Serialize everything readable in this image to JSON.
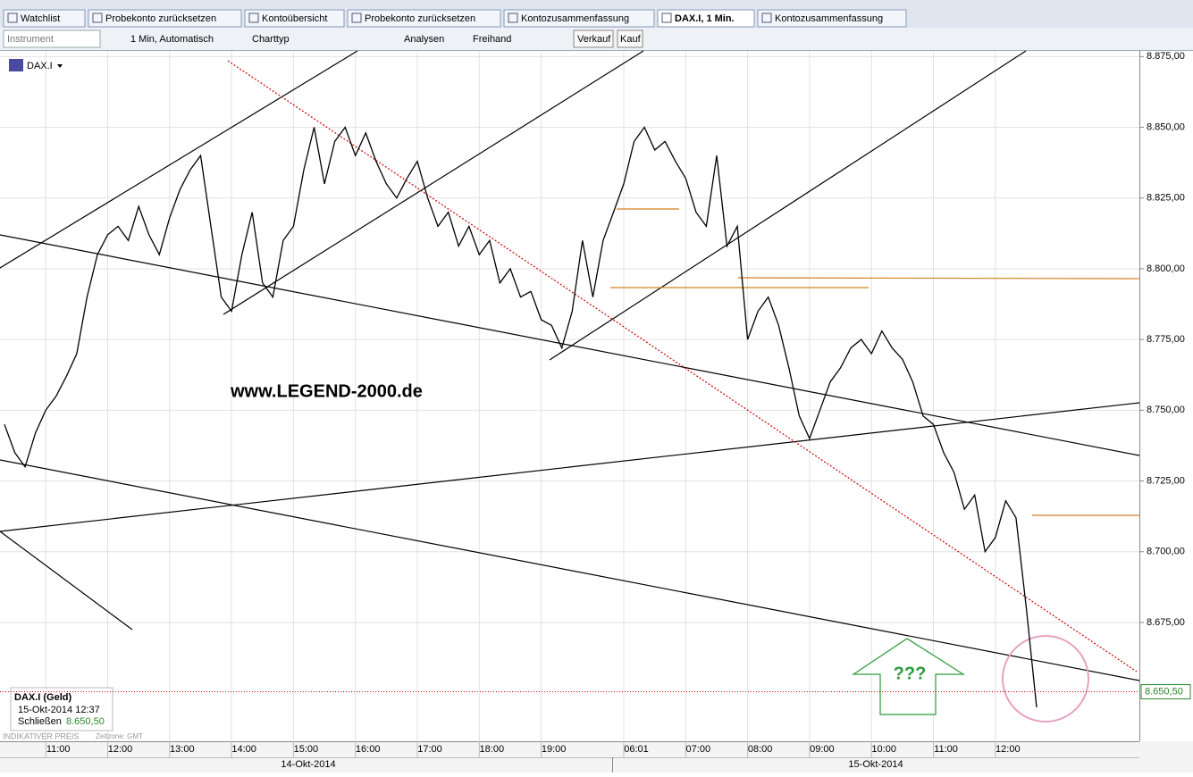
{
  "tabs": [
    "Watchlist",
    "Probekonto zurücksetzen",
    "Kontoübersicht",
    "Probekonto zurücksetzen",
    "Kontozusammenfassung",
    "DAX.I, 1 Min.",
    "Kontozusammenfassung"
  ],
  "toolbar": {
    "instrument": "Instrument",
    "interval": "1 Min, Automatisch",
    "charttype": "Charttyp",
    "analysen": "Analysen",
    "freihand": "Freihand",
    "sell": "Verkauf",
    "buy": "Kauf"
  },
  "watermark": "www.LEGEND-2000.de",
  "annotation": "???",
  "infobox": {
    "title": "DAX.I (Geld)",
    "date": "15-Okt-2014 12:37",
    "close_label": "Schließen"
  },
  "footer": {
    "note": "INDIKATIVER PREIS",
    "timezone": "Zeitzone: GMT"
  },
  "dates": [
    "14-Okt-2014",
    "15-Okt-2014"
  ],
  "chart_data": {
    "type": "line",
    "series": [
      {
        "name": "DAX.I",
        "color": "#000000",
        "x": [
          "2014-10-14 10:20",
          "2014-10-14 10:30",
          "2014-10-14 10:40",
          "2014-10-14 10:50",
          "2014-10-14 11:00",
          "2014-10-14 11:10",
          "2014-10-14 11:20",
          "2014-10-14 11:30",
          "2014-10-14 11:40",
          "2014-10-14 11:50",
          "2014-10-14 12:00",
          "2014-10-14 12:10",
          "2014-10-14 12:20",
          "2014-10-14 12:30",
          "2014-10-14 12:40",
          "2014-10-14 12:50",
          "2014-10-14 13:00",
          "2014-10-14 13:10",
          "2014-10-14 13:20",
          "2014-10-14 13:30",
          "2014-10-14 13:40",
          "2014-10-14 13:50",
          "2014-10-14 14:00",
          "2014-10-14 14:10",
          "2014-10-14 14:20",
          "2014-10-14 14:30",
          "2014-10-14 14:40",
          "2014-10-14 14:50",
          "2014-10-14 15:00",
          "2014-10-14 15:10",
          "2014-10-14 15:20",
          "2014-10-14 15:30",
          "2014-10-14 15:40",
          "2014-10-14 15:50",
          "2014-10-14 16:00",
          "2014-10-14 16:10",
          "2014-10-14 16:20",
          "2014-10-14 16:30",
          "2014-10-14 16:40",
          "2014-10-14 16:50",
          "2014-10-14 17:00",
          "2014-10-14 17:10",
          "2014-10-14 17:20",
          "2014-10-14 17:30",
          "2014-10-14 17:40",
          "2014-10-14 17:50",
          "2014-10-14 18:00",
          "2014-10-14 18:10",
          "2014-10-14 18:20",
          "2014-10-14 18:30",
          "2014-10-14 18:40",
          "2014-10-14 18:50",
          "2014-10-14 19:00",
          "2014-10-14 19:10",
          "2014-10-14 19:20",
          "2014-10-14 19:30",
          "2014-10-14 19:40",
          "2014-10-14 19:50",
          "2014-10-14 20:00",
          "2014-10-14 20:10",
          "2014-10-15 06:01",
          "2014-10-15 06:10",
          "2014-10-15 06:20",
          "2014-10-15 06:30",
          "2014-10-15 06:40",
          "2014-10-15 06:50",
          "2014-10-15 07:00",
          "2014-10-15 07:10",
          "2014-10-15 07:20",
          "2014-10-15 07:30",
          "2014-10-15 07:40",
          "2014-10-15 07:50",
          "2014-10-15 08:00",
          "2014-10-15 08:10",
          "2014-10-15 08:20",
          "2014-10-15 08:30",
          "2014-10-15 08:40",
          "2014-10-15 08:50",
          "2014-10-15 09:00",
          "2014-10-15 09:10",
          "2014-10-15 09:20",
          "2014-10-15 09:30",
          "2014-10-15 09:40",
          "2014-10-15 09:50",
          "2014-10-15 10:00",
          "2014-10-15 10:10",
          "2014-10-15 10:20",
          "2014-10-15 10:30",
          "2014-10-15 10:40",
          "2014-10-15 10:50",
          "2014-10-15 11:00",
          "2014-10-15 11:10",
          "2014-10-15 11:20",
          "2014-10-15 11:30",
          "2014-10-15 11:40",
          "2014-10-15 11:50",
          "2014-10-15 12:00",
          "2014-10-15 12:10",
          "2014-10-15 12:20",
          "2014-10-15 12:30",
          "2014-10-15 12:40"
        ],
        "values": [
          8745,
          8735,
          8730,
          8742,
          8750,
          8755,
          8762,
          8770,
          8790,
          8805,
          8812,
          8815,
          8810,
          8822,
          8812,
          8805,
          8818,
          8828,
          8835,
          8840,
          8815,
          8790,
          8785,
          8805,
          8820,
          8795,
          8790,
          8810,
          8815,
          8835,
          8850,
          8830,
          8845,
          8850,
          8840,
          8848,
          8838,
          8830,
          8825,
          8832,
          8838,
          8825,
          8815,
          8820,
          8808,
          8815,
          8805,
          8810,
          8795,
          8800,
          8790,
          8792,
          8782,
          8780,
          8772,
          8785,
          8810,
          8790,
          8810,
          8820,
          8830,
          8845,
          8850,
          8842,
          8845,
          8838,
          8832,
          8820,
          8815,
          8840,
          8808,
          8815,
          8775,
          8785,
          8790,
          8780,
          8765,
          8748,
          8740,
          8750,
          8760,
          8765,
          8772,
          8775,
          8770,
          8778,
          8772,
          8768,
          8760,
          8748,
          8745,
          8735,
          8728,
          8715,
          8720,
          8700,
          8705,
          8718,
          8712,
          8680,
          8645
        ]
      }
    ],
    "ylim": [
      8633,
      8877
    ],
    "yticks": [
      {
        "value": 8675,
        "label": "8.675,00"
      },
      {
        "value": 8700,
        "label": "8.700,00"
      },
      {
        "value": 8725,
        "label": "8.725,00"
      },
      {
        "value": 8750,
        "label": "8.750,00"
      },
      {
        "value": 8775,
        "label": "8.775,00"
      },
      {
        "value": 8800,
        "label": "8.800,00"
      },
      {
        "value": 8825,
        "label": "8.825,00"
      },
      {
        "value": 8850,
        "label": "8.850,00"
      },
      {
        "value": 8875,
        "label": "8.875,00"
      }
    ],
    "xticks": [
      {
        "value": "2014-10-14 11:00",
        "label": "11:00"
      },
      {
        "value": "2014-10-14 12:00",
        "label": "12:00"
      },
      {
        "value": "2014-10-14 13:00",
        "label": "13:00"
      },
      {
        "value": "2014-10-14 14:00",
        "label": "14:00"
      },
      {
        "value": "2014-10-14 15:00",
        "label": "15:00"
      },
      {
        "value": "2014-10-14 16:00",
        "label": "16:00"
      },
      {
        "value": "2014-10-14 17:00",
        "label": "17:00"
      },
      {
        "value": "2014-10-14 18:00",
        "label": "18:00"
      },
      {
        "value": "2014-10-14 19:00",
        "label": "19:00"
      },
      {
        "value": "2014-10-15 06:01",
        "label": "06:01"
      },
      {
        "value": "2014-10-15 07:00",
        "label": "07:00"
      },
      {
        "value": "2014-10-15 08:00",
        "label": "08:00"
      },
      {
        "value": "2014-10-15 09:00",
        "label": "09:00"
      },
      {
        "value": "2014-10-15 10:00",
        "label": "10:00"
      },
      {
        "value": "2014-10-15 11:00",
        "label": "11:00"
      },
      {
        "value": "2014-10-15 12:00",
        "label": "12:00"
      }
    ],
    "last": {
      "value": 8650.5,
      "label": "8.650,50"
    },
    "grid": true
  }
}
